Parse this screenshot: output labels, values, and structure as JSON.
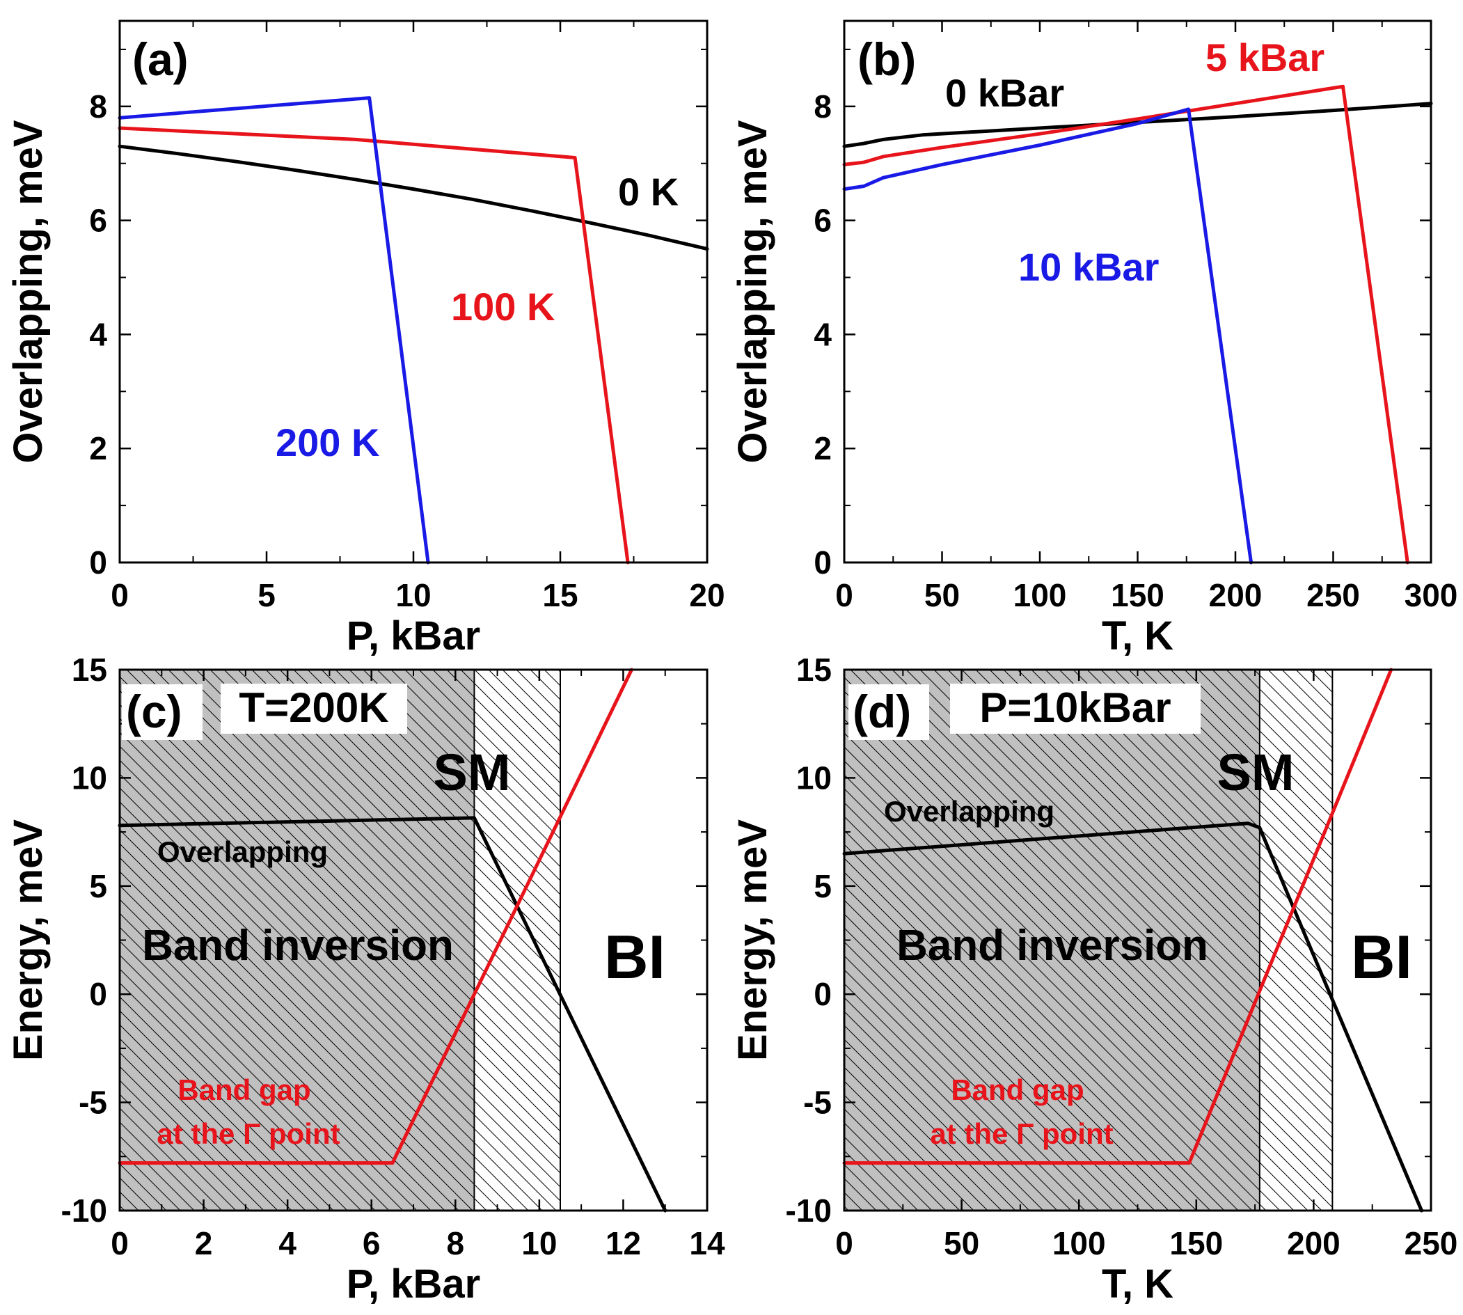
{
  "chart_data": [
    {
      "id": "a",
      "type": "line",
      "panel_label": "(a)",
      "xlabel": "P, kBar",
      "ylabel": "Overlapping, meV",
      "xlim": [
        0,
        20
      ],
      "ylim": [
        0,
        9.5
      ],
      "xticks": [
        0,
        5,
        10,
        15,
        20
      ],
      "yticks": [
        0,
        2,
        4,
        6,
        8
      ],
      "xtick_labels": [
        "0",
        "5",
        "10",
        "15",
        "20"
      ],
      "ytick_labels": [
        "0",
        "2",
        "4",
        "6",
        "8"
      ],
      "series": [
        {
          "name": "0 K",
          "color": "#000000",
          "points": [
            [
              0,
              7.3
            ],
            [
              2,
              7.17
            ],
            [
              4,
              7.03
            ],
            [
              6,
              6.88
            ],
            [
              8,
              6.72
            ],
            [
              10,
              6.55
            ],
            [
              12,
              6.37
            ],
            [
              14,
              6.17
            ],
            [
              16,
              5.96
            ],
            [
              18,
              5.74
            ],
            [
              20,
              5.5
            ]
          ]
        },
        {
          "name": "100 K",
          "color": "#e8141b",
          "points": [
            [
              0,
              7.62
            ],
            [
              8,
              7.42
            ],
            [
              15.5,
              7.1
            ],
            [
              17.3,
              0
            ]
          ]
        },
        {
          "name": "200 K",
          "color": "#1a1ae6",
          "points": [
            [
              0,
              7.8
            ],
            [
              8.5,
              8.15
            ],
            [
              10.5,
              0
            ]
          ]
        }
      ],
      "annotations": [
        {
          "text": "0 K",
          "color": "#000000"
        },
        {
          "text": "100 K",
          "color": "#e8141b"
        },
        {
          "text": "200 K",
          "color": "#1a1ae6"
        }
      ]
    },
    {
      "id": "b",
      "type": "line",
      "panel_label": "(b)",
      "xlabel": "T, K",
      "ylabel": "Overlapping, meV",
      "xlim": [
        0,
        300
      ],
      "ylim": [
        0,
        9.5
      ],
      "xticks": [
        0,
        50,
        100,
        150,
        200,
        250,
        300
      ],
      "yticks": [
        0,
        2,
        4,
        6,
        8
      ],
      "xtick_labels": [
        "0",
        "50",
        "100",
        "150",
        "200",
        "250",
        "300"
      ],
      "ytick_labels": [
        "0",
        "2",
        "4",
        "6",
        "8"
      ],
      "series": [
        {
          "name": "0 kBar",
          "color": "#000000",
          "points": [
            [
              0,
              7.3
            ],
            [
              10,
              7.35
            ],
            [
              20,
              7.42
            ],
            [
              40,
              7.5
            ],
            [
              80,
              7.58
            ],
            [
              150,
              7.72
            ],
            [
              200,
              7.82
            ],
            [
              250,
              7.93
            ],
            [
              300,
              8.05
            ]
          ]
        },
        {
          "name": "5 kBar",
          "color": "#e8141b",
          "points": [
            [
              0,
              6.98
            ],
            [
              10,
              7.02
            ],
            [
              20,
              7.12
            ],
            [
              50,
              7.28
            ],
            [
              100,
              7.52
            ],
            [
              150,
              7.78
            ],
            [
              200,
              8.05
            ],
            [
              255,
              8.35
            ],
            [
              288,
              0
            ]
          ]
        },
        {
          "name": "10 kBar",
          "color": "#1a1ae6",
          "points": [
            [
              0,
              6.55
            ],
            [
              10,
              6.6
            ],
            [
              20,
              6.75
            ],
            [
              50,
              6.98
            ],
            [
              100,
              7.32
            ],
            [
              150,
              7.7
            ],
            [
              176,
              7.95
            ],
            [
              208,
              0
            ]
          ]
        }
      ],
      "annotations": [
        {
          "text": "0 kBar",
          "color": "#000000"
        },
        {
          "text": "5 kBar",
          "color": "#e8141b"
        },
        {
          "text": "10 kBar",
          "color": "#1a1ae6"
        }
      ]
    },
    {
      "id": "c",
      "type": "line",
      "panel_label": "(c)",
      "condition": "T=200K",
      "xlabel": "P, kBar",
      "ylabel": "Energy, meV",
      "xlim": [
        0,
        14
      ],
      "ylim": [
        -10,
        15
      ],
      "xticks": [
        0,
        2,
        4,
        6,
        8,
        10,
        12,
        14
      ],
      "yticks": [
        -10,
        -5,
        0,
        5,
        10,
        15
      ],
      "xtick_labels": [
        "0",
        "2",
        "4",
        "6",
        "8",
        "10",
        "12",
        "14"
      ],
      "ytick_labels": [
        "-10",
        "-5",
        "0",
        "5",
        "10",
        "15"
      ],
      "regions": [
        {
          "name": "Band inversion",
          "x_from": 0,
          "x_to": 8.45,
          "fill": "#c0c0c0",
          "hatched": true
        },
        {
          "name": "SM",
          "x_from": 8.45,
          "x_to": 10.5,
          "fill": "#ffffff",
          "hatched": true
        },
        {
          "name": "BI",
          "x_from": 10.5,
          "x_to": 14,
          "fill": "#ffffff",
          "hatched": false
        }
      ],
      "series": [
        {
          "name": "Overlapping",
          "color": "#000000",
          "points": [
            [
              0,
              7.8
            ],
            [
              8.45,
              8.15
            ],
            [
              13.0,
              -10
            ]
          ]
        },
        {
          "name": "Band gap at the Γ point",
          "color": "#e8141b",
          "points": [
            [
              0,
              -7.8
            ],
            [
              6.5,
              -7.8
            ],
            [
              12.2,
              15
            ]
          ]
        }
      ],
      "labels": {
        "overlapping": "Overlapping",
        "gap_line1": "Band gap",
        "gap_line2": "at the Γ point",
        "inversion": "Band inversion",
        "sm": "SM",
        "bi": "BI"
      }
    },
    {
      "id": "d",
      "type": "line",
      "panel_label": "(d)",
      "condition": "P=10kBar",
      "xlabel": "T, K",
      "ylabel": "Energy, meV",
      "xlim": [
        0,
        250
      ],
      "ylim": [
        -10,
        15
      ],
      "xticks": [
        0,
        50,
        100,
        150,
        200,
        250
      ],
      "yticks": [
        -10,
        -5,
        0,
        5,
        10,
        15
      ],
      "xtick_labels": [
        "0",
        "50",
        "100",
        "150",
        "200",
        "250"
      ],
      "ytick_labels": [
        "-10",
        "-5",
        "0",
        "5",
        "10",
        "15"
      ],
      "regions": [
        {
          "name": "Band inversion",
          "x_from": 0,
          "x_to": 177,
          "fill": "#c0c0c0",
          "hatched": true
        },
        {
          "name": "SM",
          "x_from": 177,
          "x_to": 208,
          "fill": "#ffffff",
          "hatched": true
        },
        {
          "name": "BI",
          "x_from": 208,
          "x_to": 250,
          "fill": "#ffffff",
          "hatched": false
        }
      ],
      "series": [
        {
          "name": "Overlapping",
          "color": "#000000",
          "points": [
            [
              0,
              6.5
            ],
            [
              172,
              7.9
            ],
            [
              177,
              7.7
            ],
            [
              246,
              -10
            ]
          ]
        },
        {
          "name": "Band gap at the Γ point",
          "color": "#e8141b",
          "points": [
            [
              0,
              -7.8
            ],
            [
              147,
              -7.8
            ],
            [
              233,
              15
            ]
          ]
        }
      ],
      "labels": {
        "overlapping": "Overlapping",
        "gap_line1": "Band gap",
        "gap_line2": "at the Γ point",
        "inversion": "Band inversion",
        "sm": "SM",
        "bi": "BI"
      }
    }
  ]
}
